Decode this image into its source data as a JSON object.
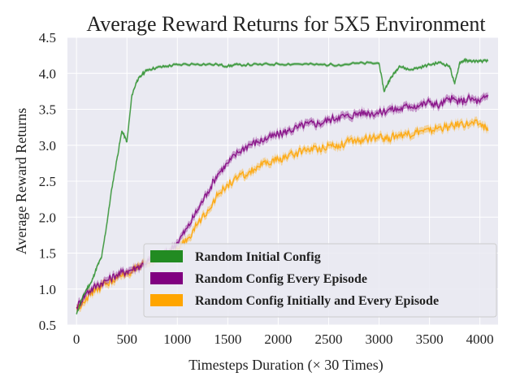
{
  "chart_data": {
    "type": "line",
    "title": "Average Reward Returns for 5X5 Environment",
    "xlabel": "Timesteps Duration (× 30 Times)",
    "ylabel": "Average Reward Returns",
    "xlim": [
      -90,
      4180
    ],
    "ylim": [
      0.5,
      4.5
    ],
    "xticks": [
      "0",
      "500",
      "1000",
      "1500",
      "2000",
      "2500",
      "3000",
      "3500",
      "4000"
    ],
    "yticks": [
      "0.5",
      "1.0",
      "1.5",
      "2.0",
      "2.5",
      "3.0",
      "3.5",
      "4.0",
      "4.5"
    ],
    "grid": true,
    "background": "#eaeaf2",
    "legend_position": "lower-right",
    "series": [
      {
        "name": "Random Initial Config",
        "color": "#228b22",
        "x": [
          0,
          50,
          100,
          150,
          200,
          250,
          300,
          350,
          400,
          450,
          500,
          550,
          600,
          650,
          700,
          800,
          900,
          1000,
          1200,
          1400,
          1500,
          1600,
          1800,
          2000,
          2200,
          2400,
          2600,
          2800,
          3000,
          3050,
          3100,
          3150,
          3200,
          3300,
          3400,
          3500,
          3600,
          3700,
          3750,
          3800,
          3850,
          3900,
          4000,
          4080
        ],
        "values": [
          0.65,
          0.85,
          1.0,
          1.1,
          1.3,
          1.45,
          1.9,
          2.4,
          2.8,
          3.2,
          3.05,
          3.7,
          3.9,
          3.98,
          4.05,
          4.08,
          4.1,
          4.12,
          4.13,
          4.12,
          4.1,
          4.12,
          4.12,
          4.13,
          4.13,
          4.12,
          4.12,
          4.14,
          4.14,
          3.75,
          3.9,
          4.0,
          4.1,
          4.05,
          4.08,
          4.12,
          4.15,
          4.1,
          3.85,
          4.15,
          4.18,
          4.17,
          4.17,
          4.17
        ]
      },
      {
        "name": "Random Config Every Episode",
        "color": "#800080",
        "x": [
          0,
          100,
          200,
          300,
          400,
          500,
          600,
          700,
          800,
          900,
          1000,
          1100,
          1200,
          1300,
          1400,
          1500,
          1600,
          1700,
          1800,
          1900,
          2000,
          2100,
          2200,
          2300,
          2400,
          2500,
          2600,
          2700,
          2800,
          2900,
          3000,
          3100,
          3200,
          3300,
          3400,
          3500,
          3600,
          3700,
          3800,
          3900,
          4000,
          4080
        ],
        "values": [
          0.75,
          0.95,
          1.05,
          1.12,
          1.2,
          1.25,
          1.3,
          1.38,
          1.45,
          1.5,
          1.65,
          1.85,
          2.1,
          2.35,
          2.6,
          2.75,
          2.9,
          3.0,
          3.05,
          3.1,
          3.15,
          3.2,
          3.25,
          3.3,
          3.3,
          3.35,
          3.4,
          3.4,
          3.45,
          3.45,
          3.45,
          3.5,
          3.5,
          3.55,
          3.55,
          3.6,
          3.55,
          3.65,
          3.6,
          3.65,
          3.6,
          3.7
        ]
      },
      {
        "name": "Random Config Initially and Every Episode",
        "color": "#ffa500",
        "x": [
          0,
          100,
          200,
          300,
          400,
          500,
          600,
          700,
          800,
          900,
          1000,
          1100,
          1200,
          1300,
          1400,
          1500,
          1600,
          1700,
          1800,
          1900,
          2000,
          2100,
          2200,
          2300,
          2400,
          2500,
          2600,
          2700,
          2800,
          2900,
          3000,
          3100,
          3200,
          3300,
          3400,
          3500,
          3600,
          3700,
          3800,
          3900,
          4000,
          4080
        ],
        "values": [
          0.72,
          0.88,
          1.0,
          1.08,
          1.15,
          1.22,
          1.28,
          1.35,
          1.42,
          1.48,
          1.55,
          1.7,
          1.9,
          2.1,
          2.3,
          2.45,
          2.55,
          2.6,
          2.7,
          2.75,
          2.8,
          2.85,
          2.9,
          2.95,
          2.95,
          3.0,
          3.0,
          3.05,
          3.05,
          3.1,
          3.1,
          3.1,
          3.15,
          3.15,
          3.2,
          3.2,
          3.25,
          3.25,
          3.3,
          3.3,
          3.3,
          3.2
        ]
      }
    ]
  }
}
